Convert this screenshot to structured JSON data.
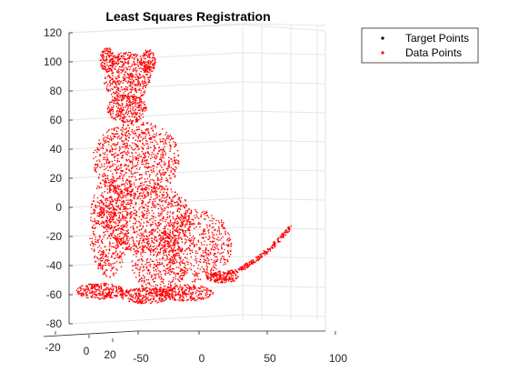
{
  "chart_data": {
    "type": "scatter",
    "projection": "3d",
    "title": "Least Squares Registration",
    "grid": true,
    "legend_placement": "top-right, outside axes",
    "series": [
      {
        "name": "Target Points",
        "color": "#000000",
        "marker": "dot",
        "values": []
      },
      {
        "name": "Data Points",
        "color": "#ff0000",
        "marker": "dot",
        "shape": "seated dog point cloud"
      }
    ],
    "axes": {
      "x": {
        "ticks": [
          "-20",
          "0",
          "20"
        ]
      },
      "y": {
        "ticks": [
          "-50",
          "0",
          "50",
          "100"
        ]
      },
      "z": {
        "range": [
          -80,
          120
        ],
        "ticks": [
          "-80",
          "-60",
          "-40",
          "-20",
          "0",
          "20",
          "40",
          "60",
          "80",
          "100",
          "120"
        ]
      }
    }
  }
}
